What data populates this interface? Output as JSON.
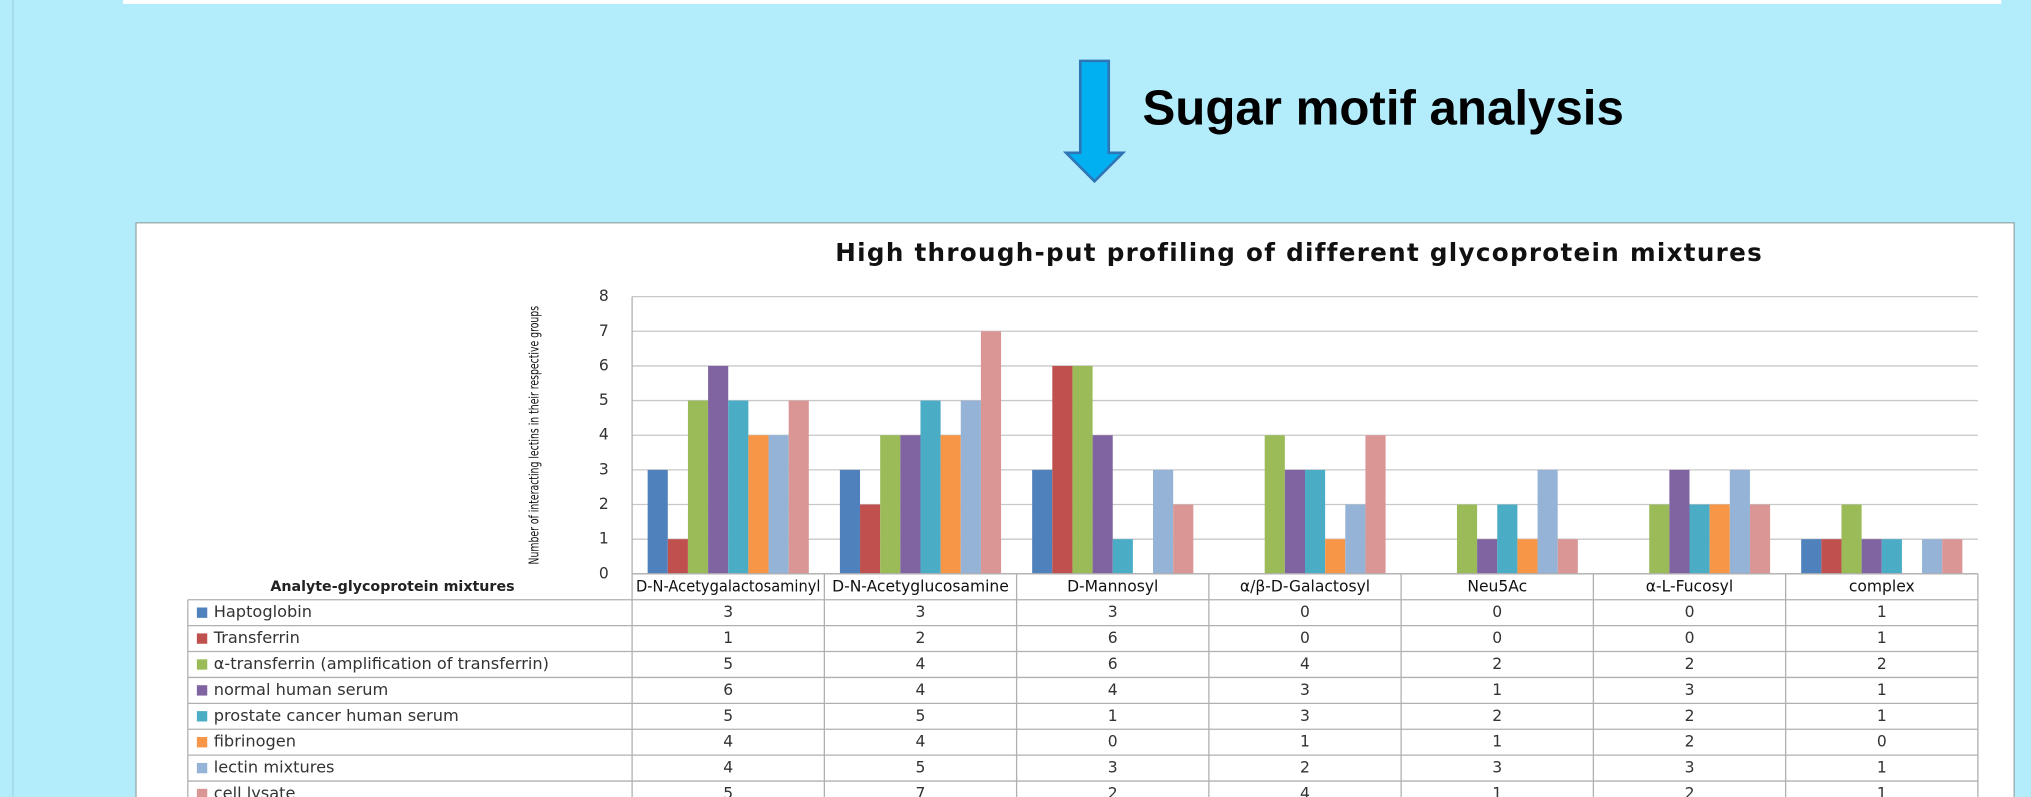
{
  "slide_title": "Sugar motif analysis",
  "chart_data": {
    "type": "bar",
    "title": "High through-put profiling of different glycoprotein mixtures",
    "y_label": "Number of interacting lectins in their respective groups",
    "table_header": "Analyte-glycoprotein mixtures",
    "categories": [
      "D-N-Acetygalactosaminyl",
      "D-N-Acetyglucosamine",
      "D-Mannosyl",
      "α/β-D-Galactosyl",
      "Neu5Ac",
      "α-L-Fucosyl",
      "complex"
    ],
    "ylim": [
      0,
      8
    ],
    "yticks": [
      0,
      1,
      2,
      3,
      4,
      5,
      6,
      7,
      8
    ],
    "grid": true,
    "series": [
      {
        "name": "Haptoglobin",
        "color": "#4f81bd",
        "values": [
          3,
          3,
          3,
          0,
          0,
          0,
          1
        ]
      },
      {
        "name": "Transferrin",
        "color": "#c0504d",
        "values": [
          1,
          2,
          6,
          0,
          0,
          0,
          1
        ]
      },
      {
        "name": "α-transferrin (amplification of transferrin)",
        "color": "#9bbb59",
        "values": [
          5,
          4,
          6,
          4,
          2,
          2,
          2
        ]
      },
      {
        "name": "normal human serum",
        "color": "#8064a2",
        "values": [
          6,
          4,
          4,
          3,
          1,
          3,
          1
        ]
      },
      {
        "name": "prostate cancer human serum",
        "color": "#4bacc6",
        "values": [
          5,
          5,
          1,
          3,
          2,
          2,
          1
        ]
      },
      {
        "name": "fibrinogen",
        "color": "#f79646",
        "values": [
          4,
          4,
          0,
          1,
          1,
          2,
          0
        ]
      },
      {
        "name": "lectin mixtures",
        "color": "#95b3d7",
        "values": [
          4,
          5,
          3,
          2,
          3,
          3,
          1
        ]
      },
      {
        "name": "cell lysate",
        "color": "#d99694",
        "values": [
          5,
          7,
          2,
          4,
          1,
          2,
          1
        ]
      }
    ]
  }
}
